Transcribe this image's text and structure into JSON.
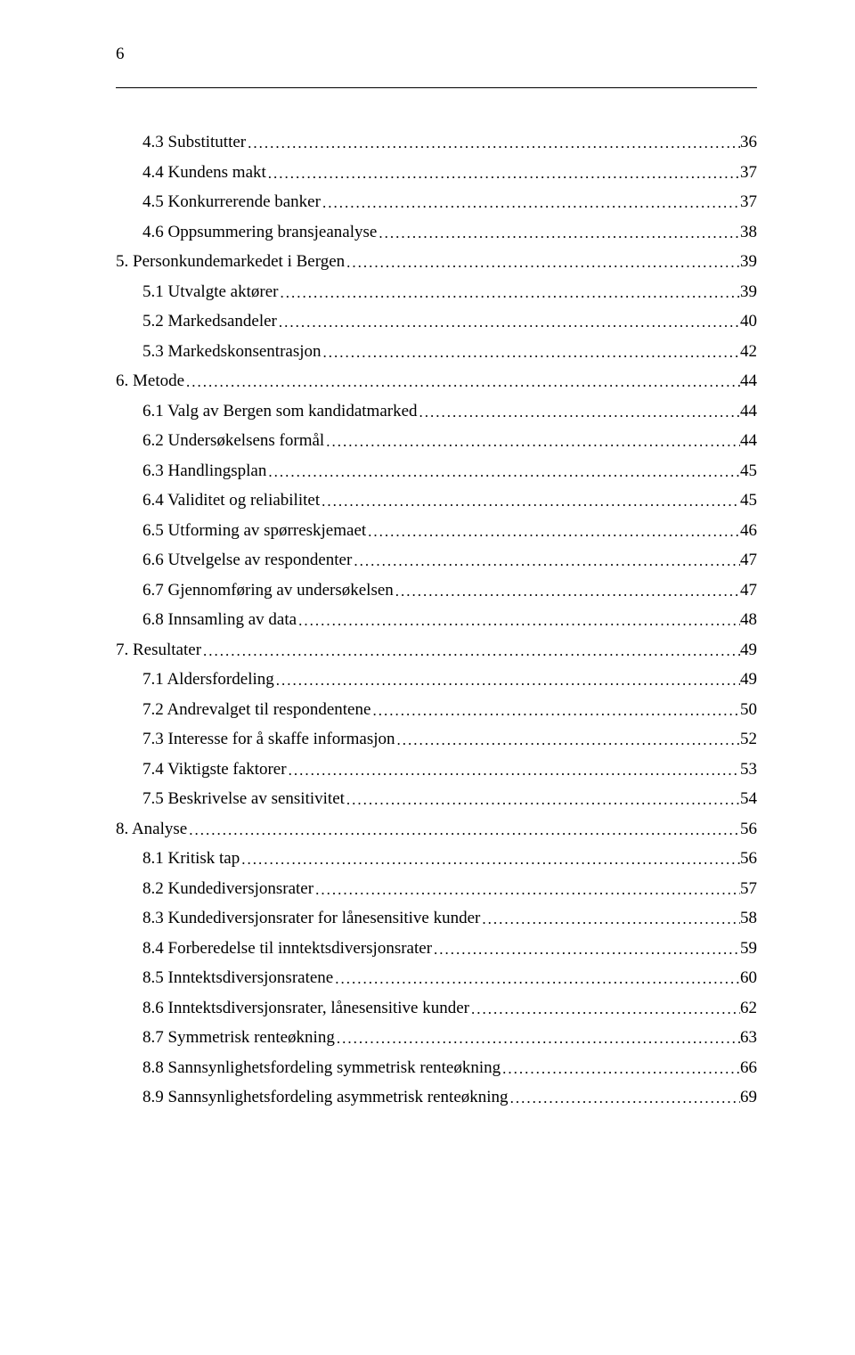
{
  "pageNumber": "6",
  "entries": [
    {
      "indent": 1,
      "label": "4.3 Substitutter",
      "page": "36"
    },
    {
      "indent": 1,
      "label": "4.4 Kundens makt",
      "page": "37"
    },
    {
      "indent": 1,
      "label": "4.5 Konkurrerende banker",
      "page": "37"
    },
    {
      "indent": 1,
      "label": "4.6 Oppsummering bransjeanalyse",
      "page": "38"
    },
    {
      "indent": 0,
      "label": "5. Personkundemarkedet i Bergen",
      "page": "39"
    },
    {
      "indent": 1,
      "label": "5.1 Utvalgte aktører",
      "page": "39"
    },
    {
      "indent": 1,
      "label": "5.2 Markedsandeler",
      "page": "40"
    },
    {
      "indent": 1,
      "label": "5.3 Markedskonsentrasjon",
      "page": "42"
    },
    {
      "indent": 0,
      "label": "6. Metode",
      "page": "44"
    },
    {
      "indent": 1,
      "label": "6.1 Valg av Bergen som kandidatmarked",
      "page": "44"
    },
    {
      "indent": 1,
      "label": "6.2 Undersøkelsens formål",
      "page": "44"
    },
    {
      "indent": 1,
      "label": "6.3 Handlingsplan",
      "page": "45"
    },
    {
      "indent": 1,
      "label": "6.4 Validitet og reliabilitet",
      "page": "45"
    },
    {
      "indent": 1,
      "label": "6.5 Utforming av spørreskjemaet",
      "page": "46"
    },
    {
      "indent": 1,
      "label": "6.6 Utvelgelse av respondenter",
      "page": "47"
    },
    {
      "indent": 1,
      "label": "6.7 Gjennomføring av undersøkelsen",
      "page": "47"
    },
    {
      "indent": 1,
      "label": "6.8 Innsamling av data",
      "page": "48"
    },
    {
      "indent": 0,
      "label": "7. Resultater",
      "page": "49"
    },
    {
      "indent": 1,
      "label": "7.1 Aldersfordeling",
      "page": "49"
    },
    {
      "indent": 1,
      "label": "7.2 Andrevalget til respondentene",
      "page": "50"
    },
    {
      "indent": 1,
      "label": "7.3 Interesse for å skaffe informasjon",
      "page": "52"
    },
    {
      "indent": 1,
      "label": "7.4 Viktigste faktorer",
      "page": "53"
    },
    {
      "indent": 1,
      "label": "7.5 Beskrivelse av sensitivitet",
      "page": "54"
    },
    {
      "indent": 0,
      "label": "8. Analyse",
      "page": "56"
    },
    {
      "indent": 1,
      "label": "8.1 Kritisk tap",
      "page": "56"
    },
    {
      "indent": 1,
      "label": "8.2 Kundediversjonsrater",
      "page": "57"
    },
    {
      "indent": 1,
      "label": "8.3 Kundediversjonsrater for lånesensitive kunder",
      "page": "58"
    },
    {
      "indent": 1,
      "label": "8.4 Forberedelse til inntektsdiversjonsrater",
      "page": "59"
    },
    {
      "indent": 1,
      "label": "8.5 Inntektsdiversjonsratene",
      "page": "60"
    },
    {
      "indent": 1,
      "label": "8.6 Inntektsdiversjonsrater, lånesensitive kunder",
      "page": "62"
    },
    {
      "indent": 1,
      "label": "8.7 Symmetrisk renteøkning",
      "page": "63"
    },
    {
      "indent": 1,
      "label": "8.8 Sannsynlighetsfordeling symmetrisk renteøkning",
      "page": "66"
    },
    {
      "indent": 1,
      "label": "8.9 Sannsynlighetsfordeling asymmetrisk renteøkning",
      "page": "69"
    }
  ]
}
